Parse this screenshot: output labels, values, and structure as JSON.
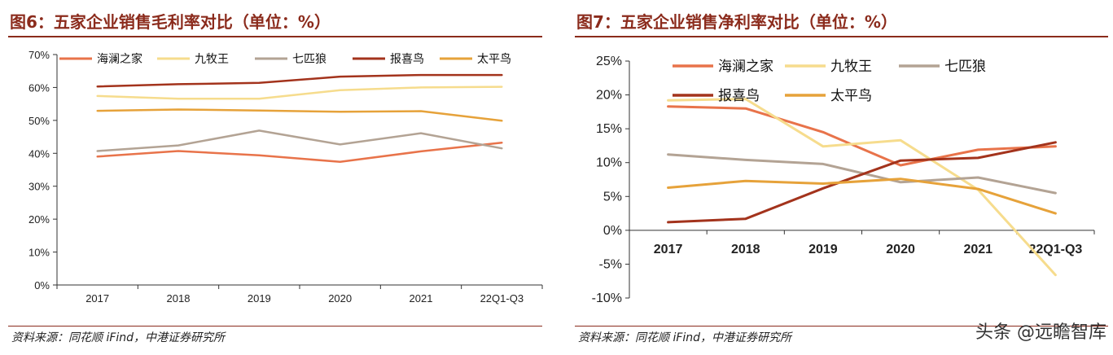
{
  "left": {
    "title": "图6：五家企业销售毛利率对比（单位：%）",
    "source": "资料来源：同花顺 iFind，中港证券研究所"
  },
  "right": {
    "title": "图7：五家企业销售净利率对比（单位：%）",
    "source": "资料来源：同花顺 iFind，中港证券研究所"
  },
  "watermark": "头条 @远瞻智库",
  "colors": {
    "haiLanZhiJia": "#e8734a",
    "jiuMuWang": "#f6dc8d",
    "qiPiLang": "#b3a394",
    "baoXiNiao": "#a3331c",
    "taiPingNiao": "#e6a23a",
    "accent": "#8b2b1c"
  },
  "chart_data": [
    {
      "type": "line",
      "categories": [
        "2017",
        "2018",
        "2019",
        "2020",
        "2021",
        "22Q1-Q3"
      ],
      "ylim": [
        0,
        70
      ],
      "yticks": [
        0,
        10,
        20,
        30,
        40,
        50,
        60,
        70
      ],
      "ytick_labels": [
        "0%",
        "10%",
        "20%",
        "30%",
        "40%",
        "50%",
        "60%",
        "70%"
      ],
      "legend_position": "top",
      "grid": false,
      "series": [
        {
          "name": "海澜之家",
          "color": "#e8734a",
          "values": [
            39.0,
            40.7,
            39.4,
            37.4,
            40.6,
            43.2
          ]
        },
        {
          "name": "九牧王",
          "color": "#f6dc8d",
          "values": [
            57.4,
            56.6,
            56.6,
            59.2,
            60.0,
            60.2
          ]
        },
        {
          "name": "七匹狼",
          "color": "#b3a394",
          "values": [
            40.7,
            42.4,
            46.9,
            42.7,
            46.1,
            41.5
          ]
        },
        {
          "name": "报喜鸟",
          "color": "#a3331c",
          "values": [
            60.3,
            61.0,
            61.4,
            63.3,
            63.8,
            63.8
          ]
        },
        {
          "name": "太平鸟",
          "color": "#e6a23a",
          "values": [
            52.9,
            53.3,
            53.0,
            52.6,
            52.8,
            49.9
          ]
        }
      ]
    },
    {
      "type": "line",
      "categories": [
        "2017",
        "2018",
        "2019",
        "2020",
        "2021",
        "22Q1-Q3"
      ],
      "ylim": [
        -10,
        25
      ],
      "yticks": [
        -10,
        -5,
        0,
        5,
        10,
        15,
        20,
        25
      ],
      "ytick_labels": [
        "-10%",
        "-5%",
        "0%",
        "5%",
        "10%",
        "15%",
        "20%",
        "25%"
      ],
      "legend_position": "top",
      "grid": false,
      "series": [
        {
          "name": "海澜之家",
          "color": "#e8734a",
          "values": [
            18.3,
            18.0,
            14.5,
            9.6,
            11.9,
            12.4
          ]
        },
        {
          "name": "九牧王",
          "color": "#f6dc8d",
          "values": [
            19.2,
            19.4,
            12.4,
            13.3,
            6.0,
            -6.6
          ]
        },
        {
          "name": "七匹狼",
          "color": "#b3a394",
          "values": [
            11.2,
            10.4,
            9.8,
            7.1,
            7.8,
            5.5
          ]
        },
        {
          "name": "报喜鸟",
          "color": "#a3331c",
          "values": [
            1.2,
            1.7,
            6.2,
            10.3,
            10.7,
            13.0
          ]
        },
        {
          "name": "太平鸟",
          "color": "#e6a23a",
          "values": [
            6.3,
            7.3,
            6.9,
            7.6,
            6.1,
            2.5
          ]
        }
      ]
    }
  ]
}
